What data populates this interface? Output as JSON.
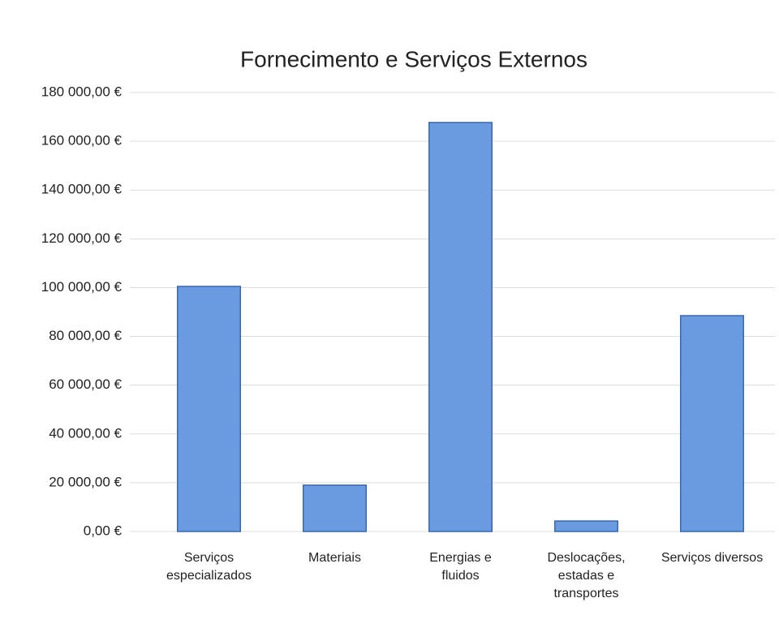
{
  "chart_data": {
    "type": "bar",
    "title": "Fornecimento e Serviços Externos",
    "categories": [
      "Serviços especializados",
      "Materiais",
      "Energias e fluidos",
      "Deslocações, estadas e transportes",
      "Serviços diversos"
    ],
    "values": [
      100500,
      19000,
      167700,
      4300,
      88500
    ],
    "color": "#6a9be0",
    "ylim": [
      0,
      180000
    ],
    "yticks": [
      {
        "value": 0,
        "label": "0,00 €"
      },
      {
        "value": 20000,
        "label": "20 000,00 €"
      },
      {
        "value": 40000,
        "label": "40 000,00 €"
      },
      {
        "value": 60000,
        "label": "60 000,00 €"
      },
      {
        "value": 80000,
        "label": "80 000,00 €"
      },
      {
        "value": 100000,
        "label": "100 000,00 €"
      },
      {
        "value": 120000,
        "label": "120 000,00 €"
      },
      {
        "value": 140000,
        "label": "140 000,00 €"
      },
      {
        "value": 160000,
        "label": "160 000,00 €"
      },
      {
        "value": 180000,
        "label": "180 000,00 €"
      }
    ],
    "grid": true
  }
}
